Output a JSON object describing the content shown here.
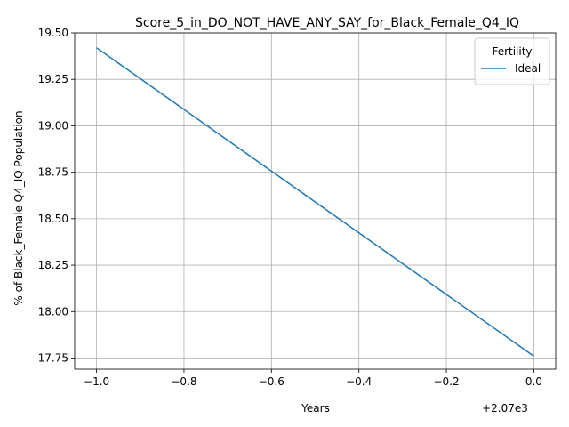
{
  "chart_data": {
    "type": "line",
    "title": "Score_5_in_DO_NOT_HAVE_ANY_SAY_for_Black_Female_Q4_IQ",
    "xlabel": "Years",
    "ylabel": "% of Black_Female Q4_IQ Population",
    "x_offset_label": "+2.07e3",
    "xlim": [
      -1.05,
      0.05
    ],
    "ylim": [
      17.69,
      19.5
    ],
    "xticks": [
      -1.0,
      -0.8,
      -0.6,
      -0.4,
      -0.2,
      0.0
    ],
    "xtick_labels": [
      "−1.0",
      "−0.8",
      "−0.6",
      "−0.4",
      "−0.2",
      "0.0"
    ],
    "yticks": [
      17.75,
      18.0,
      18.25,
      18.5,
      18.75,
      19.0,
      19.25,
      19.5
    ],
    "ytick_labels": [
      "17.75",
      "18.00",
      "18.25",
      "18.50",
      "18.75",
      "19.00",
      "19.25",
      "19.50"
    ],
    "grid": true,
    "legend": {
      "title": "Fertility",
      "placement": "top-right"
    },
    "series": [
      {
        "name": "Ideal",
        "color": "#1f77b4",
        "x": [
          -1.0,
          0.0
        ],
        "y": [
          19.42,
          17.76
        ]
      }
    ]
  }
}
